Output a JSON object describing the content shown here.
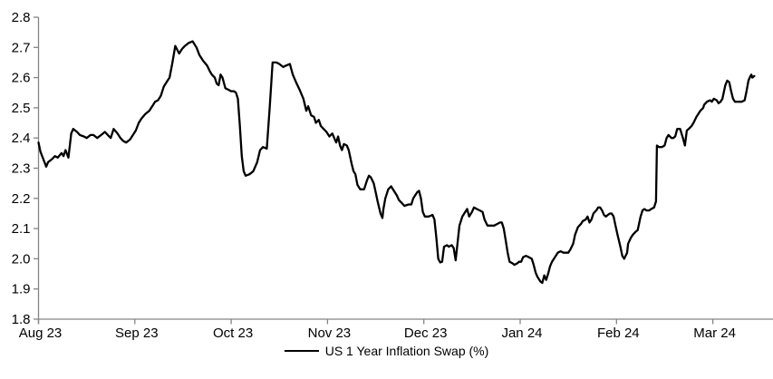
{
  "colors": {
    "background": "#ffffff",
    "axis": "#848484",
    "line": "#000000",
    "text": "#000000"
  },
  "chart_data": {
    "type": "line",
    "title": "",
    "legend": [
      "US 1 Year Inflation Swap (%)"
    ],
    "legend_position": "bottom-center",
    "grid": false,
    "x_axis": {
      "label": "",
      "tick_labels": [
        "Aug 23",
        "Sep 23",
        "Oct 23",
        "Nov 23",
        "Dec 23",
        "Jan 24",
        "Feb 24",
        "Mar 24"
      ],
      "unit": "months since Aug 2023 tick",
      "range": [
        0,
        7.63
      ]
    },
    "y_axis": {
      "label": "",
      "min": 1.8,
      "max": 2.8,
      "step": 0.1,
      "tick_labels": [
        "1.8",
        "1.9",
        "2.0",
        "2.1",
        "2.2",
        "2.3",
        "2.4",
        "2.5",
        "2.6",
        "2.7",
        "2.8"
      ]
    },
    "series": [
      {
        "name": "US 1 Year Inflation Swap (%)",
        "color": "#000000",
        "points": [
          [
            0.0,
            2.385
          ],
          [
            0.02,
            2.355
          ],
          [
            0.05,
            2.33
          ],
          [
            0.08,
            2.305
          ],
          [
            0.1,
            2.32
          ],
          [
            0.14,
            2.33
          ],
          [
            0.17,
            2.34
          ],
          [
            0.2,
            2.335
          ],
          [
            0.24,
            2.35
          ],
          [
            0.26,
            2.34
          ],
          [
            0.28,
            2.36
          ],
          [
            0.31,
            2.335
          ],
          [
            0.34,
            2.415
          ],
          [
            0.36,
            2.43
          ],
          [
            0.4,
            2.42
          ],
          [
            0.43,
            2.41
          ],
          [
            0.47,
            2.405
          ],
          [
            0.5,
            2.4
          ],
          [
            0.54,
            2.41
          ],
          [
            0.57,
            2.41
          ],
          [
            0.61,
            2.4
          ],
          [
            0.65,
            2.41
          ],
          [
            0.69,
            2.42
          ],
          [
            0.72,
            2.41
          ],
          [
            0.75,
            2.4
          ],
          [
            0.78,
            2.43
          ],
          [
            0.82,
            2.415
          ],
          [
            0.85,
            2.4
          ],
          [
            0.88,
            2.39
          ],
          [
            0.91,
            2.385
          ],
          [
            0.95,
            2.395
          ],
          [
            0.98,
            2.41
          ],
          [
            1.01,
            2.425
          ],
          [
            1.04,
            2.45
          ],
          [
            1.07,
            2.465
          ],
          [
            1.11,
            2.48
          ],
          [
            1.15,
            2.49
          ],
          [
            1.19,
            2.51
          ],
          [
            1.21,
            2.52
          ],
          [
            1.24,
            2.525
          ],
          [
            1.27,
            2.54
          ],
          [
            1.3,
            2.57
          ],
          [
            1.34,
            2.59
          ],
          [
            1.36,
            2.6
          ],
          [
            1.39,
            2.65
          ],
          [
            1.42,
            2.705
          ],
          [
            1.46,
            2.68
          ],
          [
            1.49,
            2.695
          ],
          [
            1.52,
            2.705
          ],
          [
            1.56,
            2.715
          ],
          [
            1.6,
            2.72
          ],
          [
            1.64,
            2.7
          ],
          [
            1.67,
            2.675
          ],
          [
            1.71,
            2.655
          ],
          [
            1.75,
            2.64
          ],
          [
            1.78,
            2.62
          ],
          [
            1.8,
            2.61
          ],
          [
            1.83,
            2.6
          ],
          [
            1.85,
            2.58
          ],
          [
            1.87,
            2.575
          ],
          [
            1.89,
            2.61
          ],
          [
            1.91,
            2.6
          ],
          [
            1.94,
            2.565
          ],
          [
            1.97,
            2.56
          ],
          [
            2.0,
            2.555
          ],
          [
            2.03,
            2.555
          ],
          [
            2.05,
            2.55
          ],
          [
            2.07,
            2.53
          ],
          [
            2.09,
            2.44
          ],
          [
            2.11,
            2.34
          ],
          [
            2.13,
            2.29
          ],
          [
            2.15,
            2.275
          ],
          [
            2.19,
            2.28
          ],
          [
            2.23,
            2.29
          ],
          [
            2.27,
            2.32
          ],
          [
            2.3,
            2.36
          ],
          [
            2.33,
            2.37
          ],
          [
            2.37,
            2.365
          ],
          [
            2.4,
            2.5
          ],
          [
            2.43,
            2.65
          ],
          [
            2.47,
            2.65
          ],
          [
            2.5,
            2.645
          ],
          [
            2.54,
            2.635
          ],
          [
            2.57,
            2.64
          ],
          [
            2.61,
            2.645
          ],
          [
            2.64,
            2.61
          ],
          [
            2.68,
            2.58
          ],
          [
            2.71,
            2.56
          ],
          [
            2.75,
            2.53
          ],
          [
            2.78,
            2.49
          ],
          [
            2.8,
            2.505
          ],
          [
            2.83,
            2.475
          ],
          [
            2.86,
            2.47
          ],
          [
            2.88,
            2.45
          ],
          [
            2.91,
            2.46
          ],
          [
            2.93,
            2.44
          ],
          [
            2.96,
            2.43
          ],
          [
            2.99,
            2.42
          ],
          [
            3.02,
            2.405
          ],
          [
            3.05,
            2.415
          ],
          [
            3.07,
            2.4
          ],
          [
            3.09,
            2.385
          ],
          [
            3.11,
            2.405
          ],
          [
            3.13,
            2.375
          ],
          [
            3.15,
            2.36
          ],
          [
            3.17,
            2.38
          ],
          [
            3.2,
            2.375
          ],
          [
            3.22,
            2.36
          ],
          [
            3.25,
            2.315
          ],
          [
            3.27,
            2.29
          ],
          [
            3.29,
            2.28
          ],
          [
            3.31,
            2.245
          ],
          [
            3.34,
            2.23
          ],
          [
            3.38,
            2.23
          ],
          [
            3.41,
            2.26
          ],
          [
            3.43,
            2.275
          ],
          [
            3.45,
            2.27
          ],
          [
            3.48,
            2.25
          ],
          [
            3.5,
            2.22
          ],
          [
            3.52,
            2.19
          ],
          [
            3.55,
            2.15
          ],
          [
            3.57,
            2.135
          ],
          [
            3.58,
            2.165
          ],
          [
            3.6,
            2.2
          ],
          [
            3.63,
            2.23
          ],
          [
            3.66,
            2.24
          ],
          [
            3.69,
            2.225
          ],
          [
            3.72,
            2.21
          ],
          [
            3.74,
            2.195
          ],
          [
            3.77,
            2.185
          ],
          [
            3.8,
            2.175
          ],
          [
            3.84,
            2.18
          ],
          [
            3.87,
            2.18
          ],
          [
            3.89,
            2.2
          ],
          [
            3.93,
            2.22
          ],
          [
            3.95,
            2.225
          ],
          [
            3.97,
            2.2
          ],
          [
            3.99,
            2.155
          ],
          [
            4.01,
            2.14
          ],
          [
            4.05,
            2.14
          ],
          [
            4.09,
            2.145
          ],
          [
            4.11,
            2.13
          ],
          [
            4.13,
            2.07
          ],
          [
            4.15,
            2.0
          ],
          [
            4.17,
            1.988
          ],
          [
            4.19,
            1.99
          ],
          [
            4.21,
            2.04
          ],
          [
            4.24,
            2.045
          ],
          [
            4.26,
            2.04
          ],
          [
            4.29,
            2.045
          ],
          [
            4.31,
            2.035
          ],
          [
            4.33,
            1.995
          ],
          [
            4.37,
            2.11
          ],
          [
            4.4,
            2.14
          ],
          [
            4.43,
            2.155
          ],
          [
            4.45,
            2.165
          ],
          [
            4.47,
            2.14
          ],
          [
            4.5,
            2.155
          ],
          [
            4.52,
            2.17
          ],
          [
            4.55,
            2.165
          ],
          [
            4.58,
            2.16
          ],
          [
            4.61,
            2.155
          ],
          [
            4.63,
            2.13
          ],
          [
            4.66,
            2.11
          ],
          [
            4.7,
            2.11
          ],
          [
            4.73,
            2.11
          ],
          [
            4.76,
            2.115
          ],
          [
            4.79,
            2.12
          ],
          [
            4.81,
            2.12
          ],
          [
            4.83,
            2.1
          ],
          [
            4.85,
            2.06
          ],
          [
            4.87,
            2.02
          ],
          [
            4.89,
            1.99
          ],
          [
            4.92,
            1.985
          ],
          [
            4.94,
            1.98
          ],
          [
            4.97,
            1.985
          ],
          [
            4.99,
            1.99
          ],
          [
            5.01,
            1.99
          ],
          [
            5.03,
            2.005
          ],
          [
            5.06,
            2.01
          ],
          [
            5.09,
            2.005
          ],
          [
            5.12,
            2.0
          ],
          [
            5.14,
            1.98
          ],
          [
            5.16,
            1.955
          ],
          [
            5.18,
            1.94
          ],
          [
            5.21,
            1.925
          ],
          [
            5.23,
            1.92
          ],
          [
            5.25,
            1.945
          ],
          [
            5.27,
            1.93
          ],
          [
            5.29,
            1.95
          ],
          [
            5.31,
            1.975
          ],
          [
            5.33,
            1.99
          ],
          [
            5.36,
            2.005
          ],
          [
            5.39,
            2.02
          ],
          [
            5.42,
            2.025
          ],
          [
            5.45,
            2.02
          ],
          [
            5.48,
            2.02
          ],
          [
            5.5,
            2.02
          ],
          [
            5.52,
            2.03
          ],
          [
            5.55,
            2.05
          ],
          [
            5.57,
            2.08
          ],
          [
            5.6,
            2.105
          ],
          [
            5.63,
            2.115
          ],
          [
            5.65,
            2.125
          ],
          [
            5.68,
            2.13
          ],
          [
            5.7,
            2.14
          ],
          [
            5.72,
            2.12
          ],
          [
            5.74,
            2.13
          ],
          [
            5.76,
            2.15
          ],
          [
            5.79,
            2.16
          ],
          [
            5.81,
            2.17
          ],
          [
            5.83,
            2.17
          ],
          [
            5.85,
            2.16
          ],
          [
            5.87,
            2.145
          ],
          [
            5.89,
            2.14
          ],
          [
            5.91,
            2.145
          ],
          [
            5.93,
            2.15
          ],
          [
            5.95,
            2.15
          ],
          [
            5.97,
            2.14
          ],
          [
            5.99,
            2.11
          ],
          [
            6.01,
            2.08
          ],
          [
            6.04,
            2.04
          ],
          [
            6.06,
            2.01
          ],
          [
            6.08,
            2.0
          ],
          [
            6.11,
            2.02
          ],
          [
            6.12,
            2.05
          ],
          [
            6.15,
            2.07
          ],
          [
            6.17,
            2.08
          ],
          [
            6.2,
            2.09
          ],
          [
            6.22,
            2.095
          ],
          [
            6.25,
            2.14
          ],
          [
            6.27,
            2.16
          ],
          [
            6.29,
            2.165
          ],
          [
            6.31,
            2.16
          ],
          [
            6.34,
            2.16
          ],
          [
            6.36,
            2.165
          ],
          [
            6.39,
            2.17
          ],
          [
            6.4,
            2.18
          ],
          [
            6.41,
            2.19
          ],
          [
            6.42,
            2.375
          ],
          [
            6.44,
            2.37
          ],
          [
            6.47,
            2.37
          ],
          [
            6.5,
            2.375
          ],
          [
            6.52,
            2.4
          ],
          [
            6.54,
            2.41
          ],
          [
            6.57,
            2.4
          ],
          [
            6.59,
            2.4
          ],
          [
            6.61,
            2.405
          ],
          [
            6.63,
            2.43
          ],
          [
            6.66,
            2.43
          ],
          [
            6.69,
            2.4
          ],
          [
            6.71,
            2.375
          ],
          [
            6.73,
            2.425
          ],
          [
            6.75,
            2.43
          ],
          [
            6.78,
            2.44
          ],
          [
            6.8,
            2.45
          ],
          [
            6.83,
            2.47
          ],
          [
            6.87,
            2.49
          ],
          [
            6.9,
            2.5
          ],
          [
            6.91,
            2.51
          ],
          [
            6.94,
            2.52
          ],
          [
            6.97,
            2.525
          ],
          [
            6.99,
            2.52
          ],
          [
            7.01,
            2.53
          ],
          [
            7.04,
            2.525
          ],
          [
            7.06,
            2.515
          ],
          [
            7.08,
            2.52
          ],
          [
            7.1,
            2.53
          ],
          [
            7.13,
            2.575
          ],
          [
            7.15,
            2.59
          ],
          [
            7.17,
            2.585
          ],
          [
            7.19,
            2.555
          ],
          [
            7.21,
            2.53
          ],
          [
            7.23,
            2.52
          ],
          [
            7.26,
            2.52
          ],
          [
            7.28,
            2.52
          ],
          [
            7.3,
            2.52
          ],
          [
            7.33,
            2.525
          ],
          [
            7.35,
            2.555
          ],
          [
            7.37,
            2.59
          ],
          [
            7.39,
            2.605
          ],
          [
            7.4,
            2.61
          ],
          [
            7.41,
            2.6
          ],
          [
            7.43,
            2.605
          ]
        ]
      }
    ]
  }
}
